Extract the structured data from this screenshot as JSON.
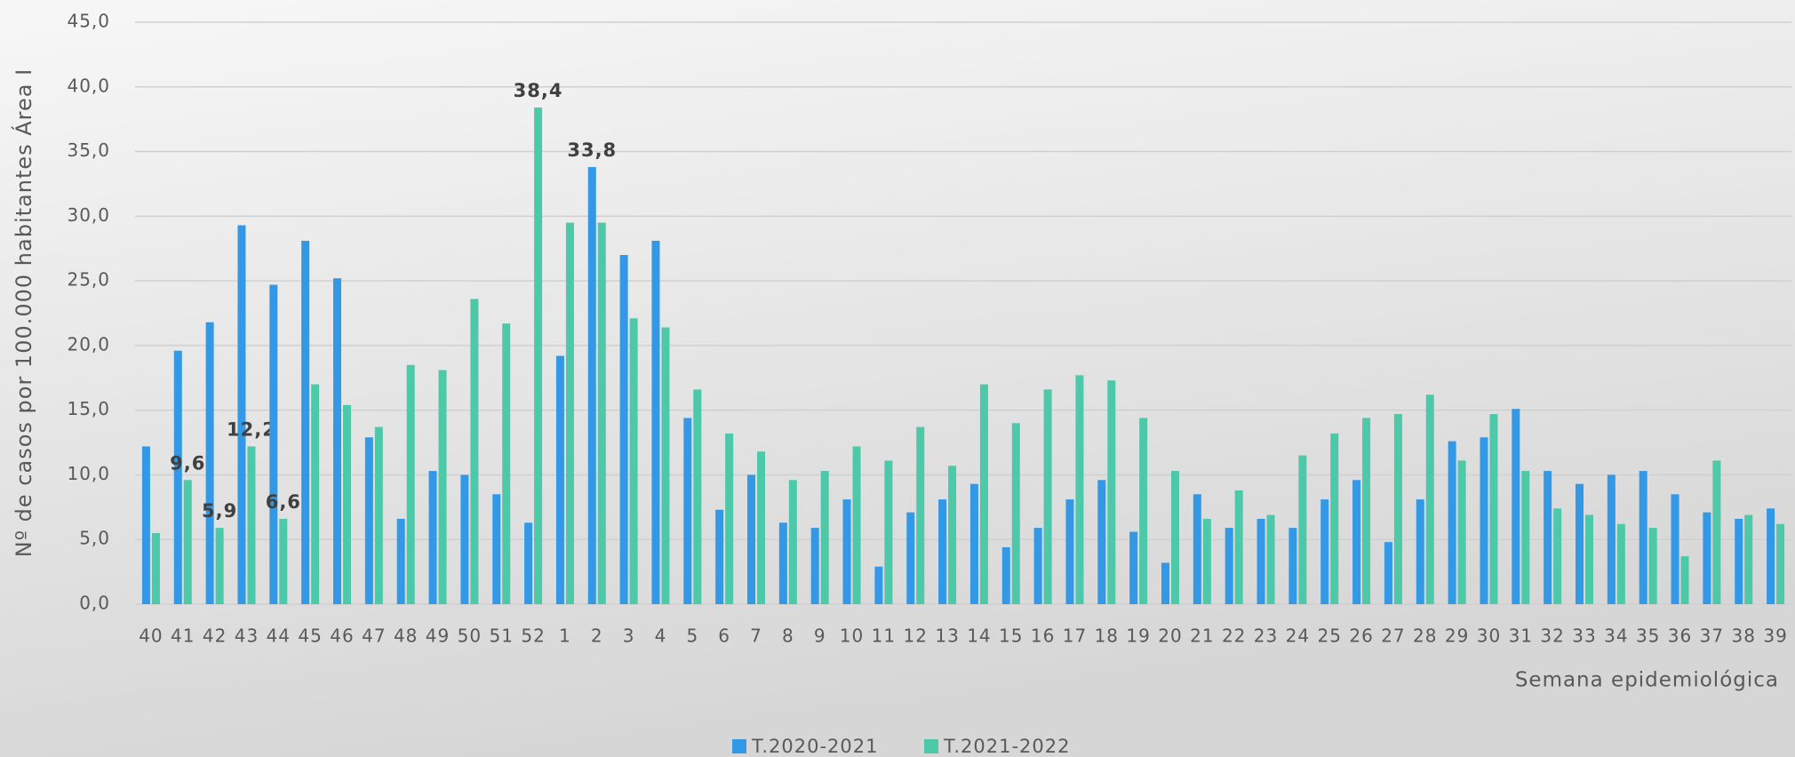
{
  "chart_data": {
    "type": "bar",
    "y_label": "Nº de casos por 100.000 habitantes Área I",
    "x_label": "Semana epidemiológica",
    "categories": [
      "40",
      "41",
      "42",
      "43",
      "44",
      "45",
      "46",
      "47",
      "48",
      "49",
      "50",
      "51",
      "52",
      "1",
      "2",
      "3",
      "4",
      "5",
      "6",
      "7",
      "8",
      "9",
      "10",
      "11",
      "12",
      "13",
      "14",
      "15",
      "16",
      "17",
      "18",
      "19",
      "20",
      "21",
      "22",
      "23",
      "24",
      "25",
      "26",
      "27",
      "28",
      "29",
      "30",
      "31",
      "32",
      "33",
      "34",
      "35",
      "36",
      "37",
      "38",
      "39"
    ],
    "series": [
      {
        "name": "T.2020-2021",
        "color": "#3399e6",
        "values": [
          12.2,
          19.6,
          21.8,
          29.3,
          24.7,
          28.1,
          25.2,
          12.9,
          6.6,
          10.3,
          10.0,
          8.5,
          6.3,
          19.2,
          33.8,
          27.0,
          28.1,
          14.4,
          7.3,
          10.0,
          6.3,
          5.9,
          8.1,
          2.9,
          7.1,
          8.1,
          9.3,
          4.4,
          5.9,
          8.1,
          9.6,
          5.6,
          3.2,
          8.5,
          5.9,
          6.6,
          5.9,
          8.1,
          9.6,
          4.8,
          8.1,
          12.6,
          12.9,
          15.1,
          10.3,
          9.3,
          10.0,
          10.3,
          8.5,
          7.1,
          6.6,
          7.4
        ],
        "value_labels": [
          null,
          null,
          null,
          null,
          null,
          null,
          null,
          null,
          null,
          null,
          null,
          null,
          null,
          null,
          "33,8",
          null,
          null,
          null,
          null,
          null,
          null,
          null,
          null,
          null,
          null,
          null,
          null,
          null,
          null,
          null,
          null,
          null,
          null,
          null,
          null,
          null,
          null,
          null,
          null,
          null,
          null,
          null,
          null,
          null,
          null,
          null,
          null,
          null,
          null,
          null,
          null,
          null
        ]
      },
      {
        "name": "T.2021-2022",
        "color": "#4dc8a8",
        "values": [
          5.5,
          9.6,
          5.9,
          12.2,
          6.6,
          17.0,
          15.4,
          13.7,
          18.5,
          18.1,
          23.6,
          21.7,
          38.4,
          29.5,
          29.5,
          22.1,
          21.4,
          16.6,
          13.2,
          11.8,
          9.6,
          10.3,
          12.2,
          11.1,
          13.7,
          10.7,
          17.0,
          14.0,
          16.6,
          17.7,
          17.3,
          14.4,
          10.3,
          6.6,
          8.8,
          6.9,
          11.5,
          13.2,
          14.4,
          14.7,
          16.2,
          11.1,
          14.7,
          10.3,
          7.4,
          6.9,
          6.2,
          5.9,
          3.7,
          11.1,
          6.9,
          6.2
        ],
        "value_labels": [
          null,
          "9,6",
          "5,9",
          "12,2",
          "6,6",
          null,
          null,
          null,
          null,
          null,
          null,
          null,
          "38,4",
          null,
          null,
          null,
          null,
          null,
          null,
          null,
          null,
          null,
          null,
          null,
          null,
          null,
          null,
          null,
          null,
          null,
          null,
          null,
          null,
          null,
          null,
          null,
          null,
          null,
          null,
          null,
          null,
          null,
          null,
          null,
          null,
          null,
          null,
          null,
          null,
          null,
          null,
          null
        ]
      }
    ],
    "ylim": [
      0,
      45
    ],
    "yticks": [
      {
        "value": 0,
        "label": "0,0"
      },
      {
        "value": 5,
        "label": "5,0"
      },
      {
        "value": 10,
        "label": "10,0"
      },
      {
        "value": 15,
        "label": "15,0"
      },
      {
        "value": 20,
        "label": "20,0"
      },
      {
        "value": 25,
        "label": "25,0"
      },
      {
        "value": 30,
        "label": "30,0"
      },
      {
        "value": 35,
        "label": "35,0"
      },
      {
        "value": 40,
        "label": "40,0"
      },
      {
        "value": 45,
        "label": "45,0"
      }
    ],
    "grid": true
  }
}
